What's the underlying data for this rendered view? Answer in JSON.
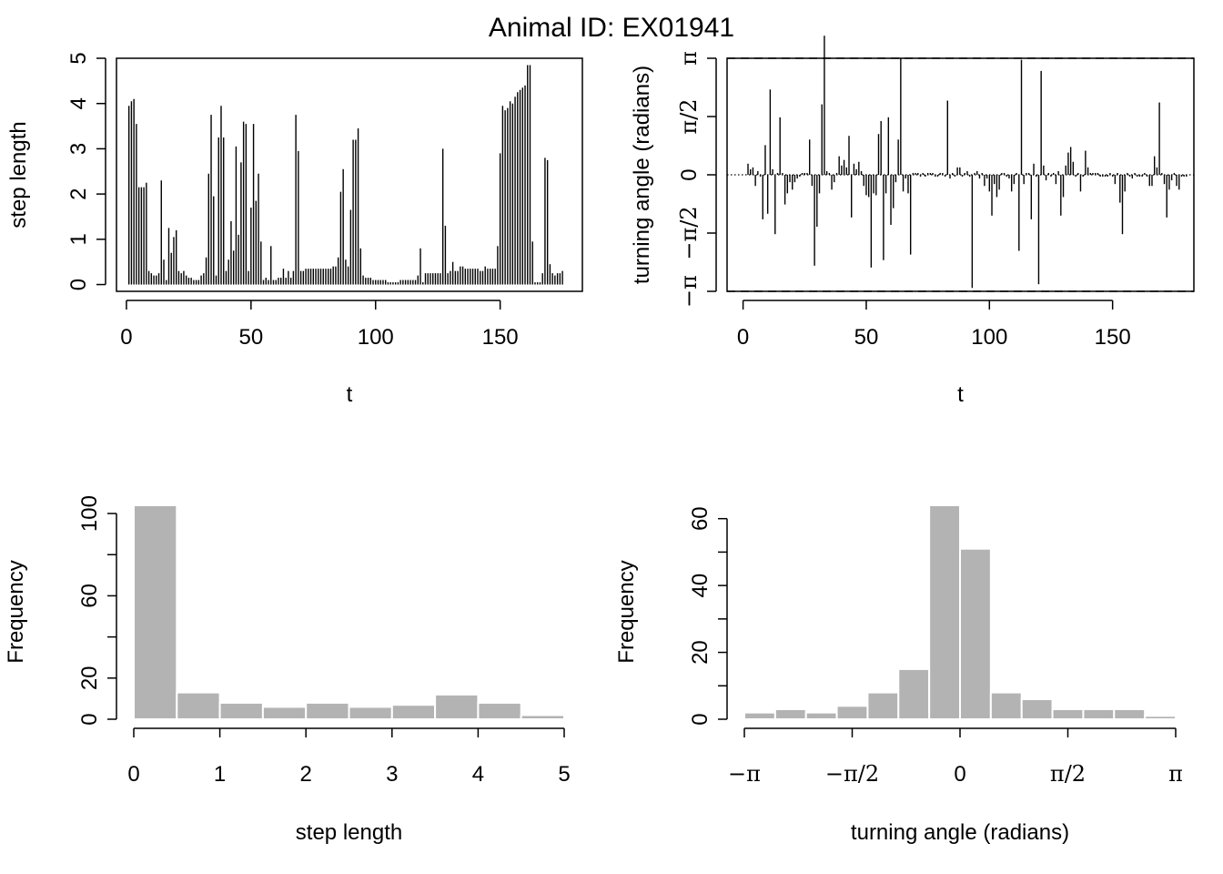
{
  "figure_title": "Animal ID: EX01941",
  "colors": {
    "ink": "#000000",
    "hist_fill": "#b3b3b3",
    "hist_border": "#ffffff"
  },
  "chart_data": [
    {
      "type": "bar",
      "subtype": "needle",
      "xlabel": "t",
      "ylabel": "step length",
      "xlim": [
        -4,
        183
      ],
      "ylim": [
        -0.15,
        5.0
      ],
      "x_ticks": [
        0,
        50,
        100,
        150
      ],
      "y_ticks": [
        0,
        1,
        2,
        3,
        4,
        5
      ],
      "x_tick_labels": [
        "0",
        "50",
        "100",
        "150"
      ],
      "y_tick_labels": [
        "0",
        "1",
        "2",
        "3",
        "4",
        "5"
      ],
      "x_start": 1,
      "values": [
        3.95,
        4.05,
        4.1,
        3.55,
        2.15,
        2.15,
        2.15,
        2.25,
        0.3,
        0.25,
        0.2,
        0.2,
        0.25,
        2.3,
        0.55,
        0.1,
        1.25,
        0.7,
        1.05,
        1.2,
        0.3,
        0.25,
        0.3,
        0.2,
        0.15,
        0.15,
        0.1,
        0.1,
        0.1,
        0.2,
        0.25,
        0.6,
        2.45,
        3.75,
        1.95,
        0.2,
        3.25,
        3.95,
        3.25,
        0.3,
        0.55,
        1.4,
        0.75,
        3.05,
        1.1,
        2.7,
        3.6,
        3.55,
        0.3,
        1.7,
        3.55,
        1.85,
        2.45,
        0.95,
        0.1,
        0.15,
        0.1,
        0.85,
        0.1,
        0.1,
        0.15,
        0.15,
        0.35,
        0.15,
        0.3,
        0.15,
        0.3,
        3.75,
        2.95,
        0.3,
        0.3,
        0.35,
        0.35,
        0.35,
        0.35,
        0.35,
        0.35,
        0.35,
        0.35,
        0.35,
        0.35,
        0.35,
        0.4,
        0.4,
        0.6,
        2.05,
        2.55,
        0.55,
        0.4,
        1.65,
        3.2,
        3.2,
        3.45,
        0.8,
        0.2,
        0.15,
        0.15,
        0.15,
        0.1,
        0.1,
        0.1,
        0.1,
        0.1,
        0.1,
        0.05,
        0.05,
        0.05,
        0.05,
        0.05,
        0.1,
        0.1,
        0.1,
        0.1,
        0.1,
        0.1,
        0.1,
        0.2,
        0.8,
        0.05,
        0.25,
        0.25,
        0.25,
        0.25,
        0.25,
        0.25,
        0.25,
        3.0,
        1.3,
        0.25,
        0.3,
        0.5,
        0.3,
        0.3,
        0.4,
        0.4,
        0.35,
        0.35,
        0.35,
        0.35,
        0.35,
        0.35,
        0.3,
        0.3,
        0.4,
        0.35,
        0.35,
        0.35,
        0.35,
        0.85,
        2.9,
        3.95,
        3.85,
        3.9,
        4.05,
        4.0,
        4.15,
        4.25,
        4.3,
        4.35,
        4.4,
        4.85,
        4.85,
        0.95,
        0.05,
        0.05,
        0.05,
        0.25,
        2.8,
        2.75,
        0.45,
        0.25,
        0.2,
        0.25,
        0.25,
        0.3
      ]
    },
    {
      "type": "bar",
      "subtype": "needle",
      "xlabel": "t",
      "ylabel": "turning angle (radians)",
      "xlim": [
        -6.5,
        183
      ],
      "ylim": [
        -3.14159,
        3.14159
      ],
      "x_ticks": [
        0,
        50,
        100,
        150
      ],
      "x_tick_labels": [
        "0",
        "50",
        "100",
        "150"
      ],
      "y_ticks": [
        -3.14159,
        -1.5708,
        0,
        1.5708,
        3.14159
      ],
      "y_tick_labels": [
        "−π",
        "−π/2",
        "0",
        "π/2",
        "π"
      ],
      "reference_lines": [
        3.14159,
        -3.14159
      ],
      "x_start": 2,
      "values": [
        0.3,
        0.15,
        0.2,
        -0.3,
        0.1,
        -0.05,
        -1.2,
        0.8,
        -1.05,
        2.3,
        0.15,
        -1.6,
        0.05,
        1.55,
        0.05,
        -0.8,
        -0.5,
        -0.2,
        -0.4,
        -0.2,
        -0.1,
        -0.05,
        0.05,
        0.05,
        0.05,
        0.95,
        -0.3,
        -2.45,
        -1.4,
        -0.5,
        1.9,
        3.75,
        0.1,
        0.05,
        -0.4,
        -0.2,
        0.05,
        0.5,
        0.25,
        0.4,
        0.2,
        1.05,
        -1.15,
        0.3,
        0.15,
        0.35,
        0.1,
        -0.3,
        -0.55,
        -0.6,
        -2.5,
        -0.5,
        -0.55,
        1.1,
        1.45,
        -2.3,
        -0.5,
        1.55,
        -1.35,
        -0.9,
        -0.2,
        0.95,
        3.15,
        -0.45,
        -0.1,
        -0.5,
        -2.15,
        0.05,
        0.05,
        0.05,
        -0.05,
        0.05,
        -0.05,
        0.05,
        0.05,
        0.05,
        -0.05,
        -0.05,
        0.05,
        0.05,
        -0.05,
        2.0,
        -0.1,
        0.05,
        -0.05,
        0.2,
        0.2,
        -0.05,
        0.05,
        0.1,
        -0.05,
        -3.05,
        0.05,
        0.1,
        -0.1,
        0.05,
        -0.3,
        -0.1,
        -0.45,
        -1.1,
        -0.25,
        -0.6,
        -0.4,
        0.05,
        0.05,
        -0.05,
        -0.1,
        -0.45,
        -0.25,
        0.05,
        -2.05,
        3.1,
        -0.25,
        0.05,
        0.05,
        -1.2,
        0.3,
        -0.05,
        -2.95,
        2.8,
        0.25,
        -0.15,
        0.05,
        -0.05,
        0.05,
        -0.25,
        0.1,
        -1.1,
        -0.6,
        0.25,
        0.6,
        0.75,
        0.35,
        -0.05,
        0.05,
        -0.45,
        -0.05,
        0.65,
        0.2,
        0.05,
        0.05,
        0.05,
        0.05,
        -0.05,
        -0.05,
        -0.05,
        -0.05,
        0.05,
        -0.05,
        -0.25,
        0.05,
        -0.75,
        -1.6,
        -0.45,
        0.05,
        -0.05,
        -0.1,
        0.05,
        -0.05,
        -0.05,
        -0.05,
        0.05,
        -0.05,
        -0.3,
        -0.3,
        0.5,
        0.2,
        1.95,
        0.05,
        -0.25,
        -1.15,
        -0.4,
        -0.15,
        0.05,
        -0.3,
        -0.4,
        -0.05,
        -0.05,
        -0.05
      ]
    },
    {
      "type": "histogram",
      "xlabel": "step length",
      "ylabel": "Frequency",
      "xlim": [
        0,
        5
      ],
      "ylim": [
        0,
        104
      ],
      "x_ticks": [
        0,
        1,
        2,
        3,
        4,
        5
      ],
      "x_tick_labels": [
        "0",
        "1",
        "2",
        "3",
        "4",
        "5"
      ],
      "y_ticks": [
        0,
        20,
        40,
        60,
        80,
        100
      ],
      "y_tick_labels": [
        "0",
        "20",
        "",
        "60",
        "",
        "100"
      ],
      "bins": [
        [
          0,
          0.5
        ],
        [
          0.5,
          1
        ],
        [
          1,
          1.5
        ],
        [
          1.5,
          2
        ],
        [
          2,
          2.5
        ],
        [
          2.5,
          3
        ],
        [
          3,
          3.5
        ],
        [
          3.5,
          4
        ],
        [
          4,
          4.5
        ],
        [
          4.5,
          5
        ]
      ],
      "values": [
        104,
        13,
        8,
        6,
        8,
        6,
        7,
        12,
        8,
        2
      ]
    },
    {
      "type": "histogram",
      "xlabel": "turning angle (radians)",
      "ylabel": "Frequency",
      "xlim": [
        -3.14159,
        3.14159
      ],
      "ylim": [
        0,
        64
      ],
      "x_ticks": [
        -3.14159,
        -1.5708,
        0,
        1.5708,
        3.14159
      ],
      "x_tick_labels": [
        "−π",
        "−π/2",
        "0",
        "π/2",
        "π"
      ],
      "y_ticks": [
        0,
        10,
        20,
        30,
        40,
        50,
        60
      ],
      "y_tick_labels": [
        "0",
        "",
        "20",
        "",
        "40",
        "",
        "60"
      ],
      "bin_count": 14,
      "values": [
        2,
        3,
        2,
        4,
        8,
        15,
        64,
        51,
        8,
        6,
        3,
        3,
        3,
        1
      ]
    }
  ]
}
